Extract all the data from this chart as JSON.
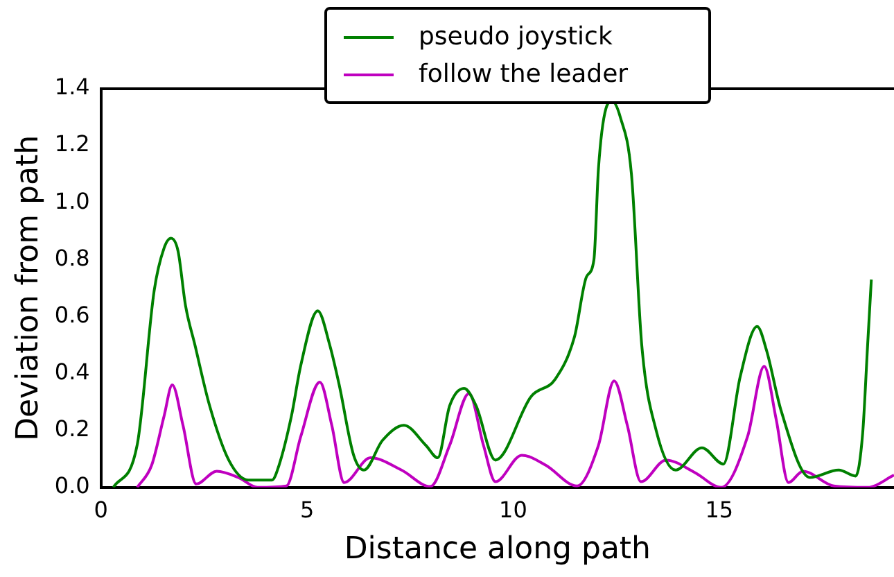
{
  "chart_data": {
    "type": "line",
    "xlabel": "Distance along path",
    "ylabel": "Deviation from path",
    "xlim": [
      0,
      19.24
    ],
    "ylim": [
      0,
      1.4
    ],
    "xticks": [
      0,
      5,
      10,
      15
    ],
    "yticks": [
      {
        "value": 0,
        "label": "0.0"
      },
      0.2,
      0.4,
      0.6,
      0.8,
      {
        "value": 1,
        "label": "1.0"
      },
      1.2,
      1.4
    ],
    "grid": false,
    "legend": "top",
    "series": [
      {
        "name": "pseudo joystick",
        "color": "#008000",
        "x": [
          0.3,
          0.88,
          1.29,
          1.53,
          1.7,
          1.87,
          2.05,
          2.28,
          2.63,
          3.1,
          3.57,
          4.15,
          4.32,
          4.62,
          4.85,
          5.26,
          5.55,
          5.78,
          6.13,
          6.38,
          6.83,
          7.35,
          7.88,
          8.17,
          8.46,
          8.81,
          9.1,
          9.57,
          10.44,
          11.02,
          11.49,
          11.78,
          11.96,
          12.07,
          12.25,
          12.4,
          12.6,
          12.87,
          13.12,
          13.47,
          13.94,
          14.58,
          15.1,
          15.51,
          15.92,
          16.15,
          16.5,
          17.2,
          17.9,
          18.31,
          18.48,
          18.6,
          18.69
        ],
        "values": [
          0,
          0.15,
          0.69,
          0.84,
          0.875,
          0.83,
          0.64,
          0.5,
          0.29,
          0.096,
          0.026,
          0.026,
          0.078,
          0.25,
          0.43,
          0.62,
          0.5,
          0.36,
          0.113,
          0.061,
          0.165,
          0.218,
          0.148,
          0.104,
          0.287,
          0.348,
          0.287,
          0.096,
          0.32,
          0.38,
          0.53,
          0.74,
          0.8,
          1.12,
          1.33,
          1.356,
          1.3,
          1.1,
          0.5,
          0.2,
          0.061,
          0.139,
          0.082,
          0.39,
          0.565,
          0.48,
          0.27,
          0.035,
          0.061,
          0.04,
          0.19,
          0.5,
          0.73
        ]
      },
      {
        "name": "follow the leader",
        "color": "#bf00bf",
        "x": [
          0.88,
          1.23,
          1.53,
          1.73,
          1.99,
          2.31,
          2.81,
          3.33,
          3.8,
          4.5,
          4.85,
          5.31,
          5.6,
          5.9,
          6.54,
          7.29,
          7.99,
          8.46,
          8.93,
          9.28,
          9.57,
          10.21,
          10.79,
          11.55,
          12.07,
          12.45,
          12.77,
          13.1,
          13.71,
          14.41,
          15.05,
          15.69,
          16.09,
          16.38,
          16.68,
          17.03,
          17.78,
          18.6,
          19.24
        ],
        "values": [
          0,
          0.078,
          0.25,
          0.36,
          0.218,
          0.012,
          0.057,
          0.035,
          0,
          0.005,
          0.18,
          0.37,
          0.218,
          0.017,
          0.104,
          0.061,
          0.003,
          0.148,
          0.33,
          0.148,
          0.02,
          0.113,
          0.078,
          0.005,
          0.148,
          0.374,
          0.218,
          0.02,
          0.096,
          0.052,
          0,
          0.18,
          0.425,
          0.24,
          0.017,
          0.057,
          0.005,
          0,
          0.043
        ]
      }
    ]
  }
}
